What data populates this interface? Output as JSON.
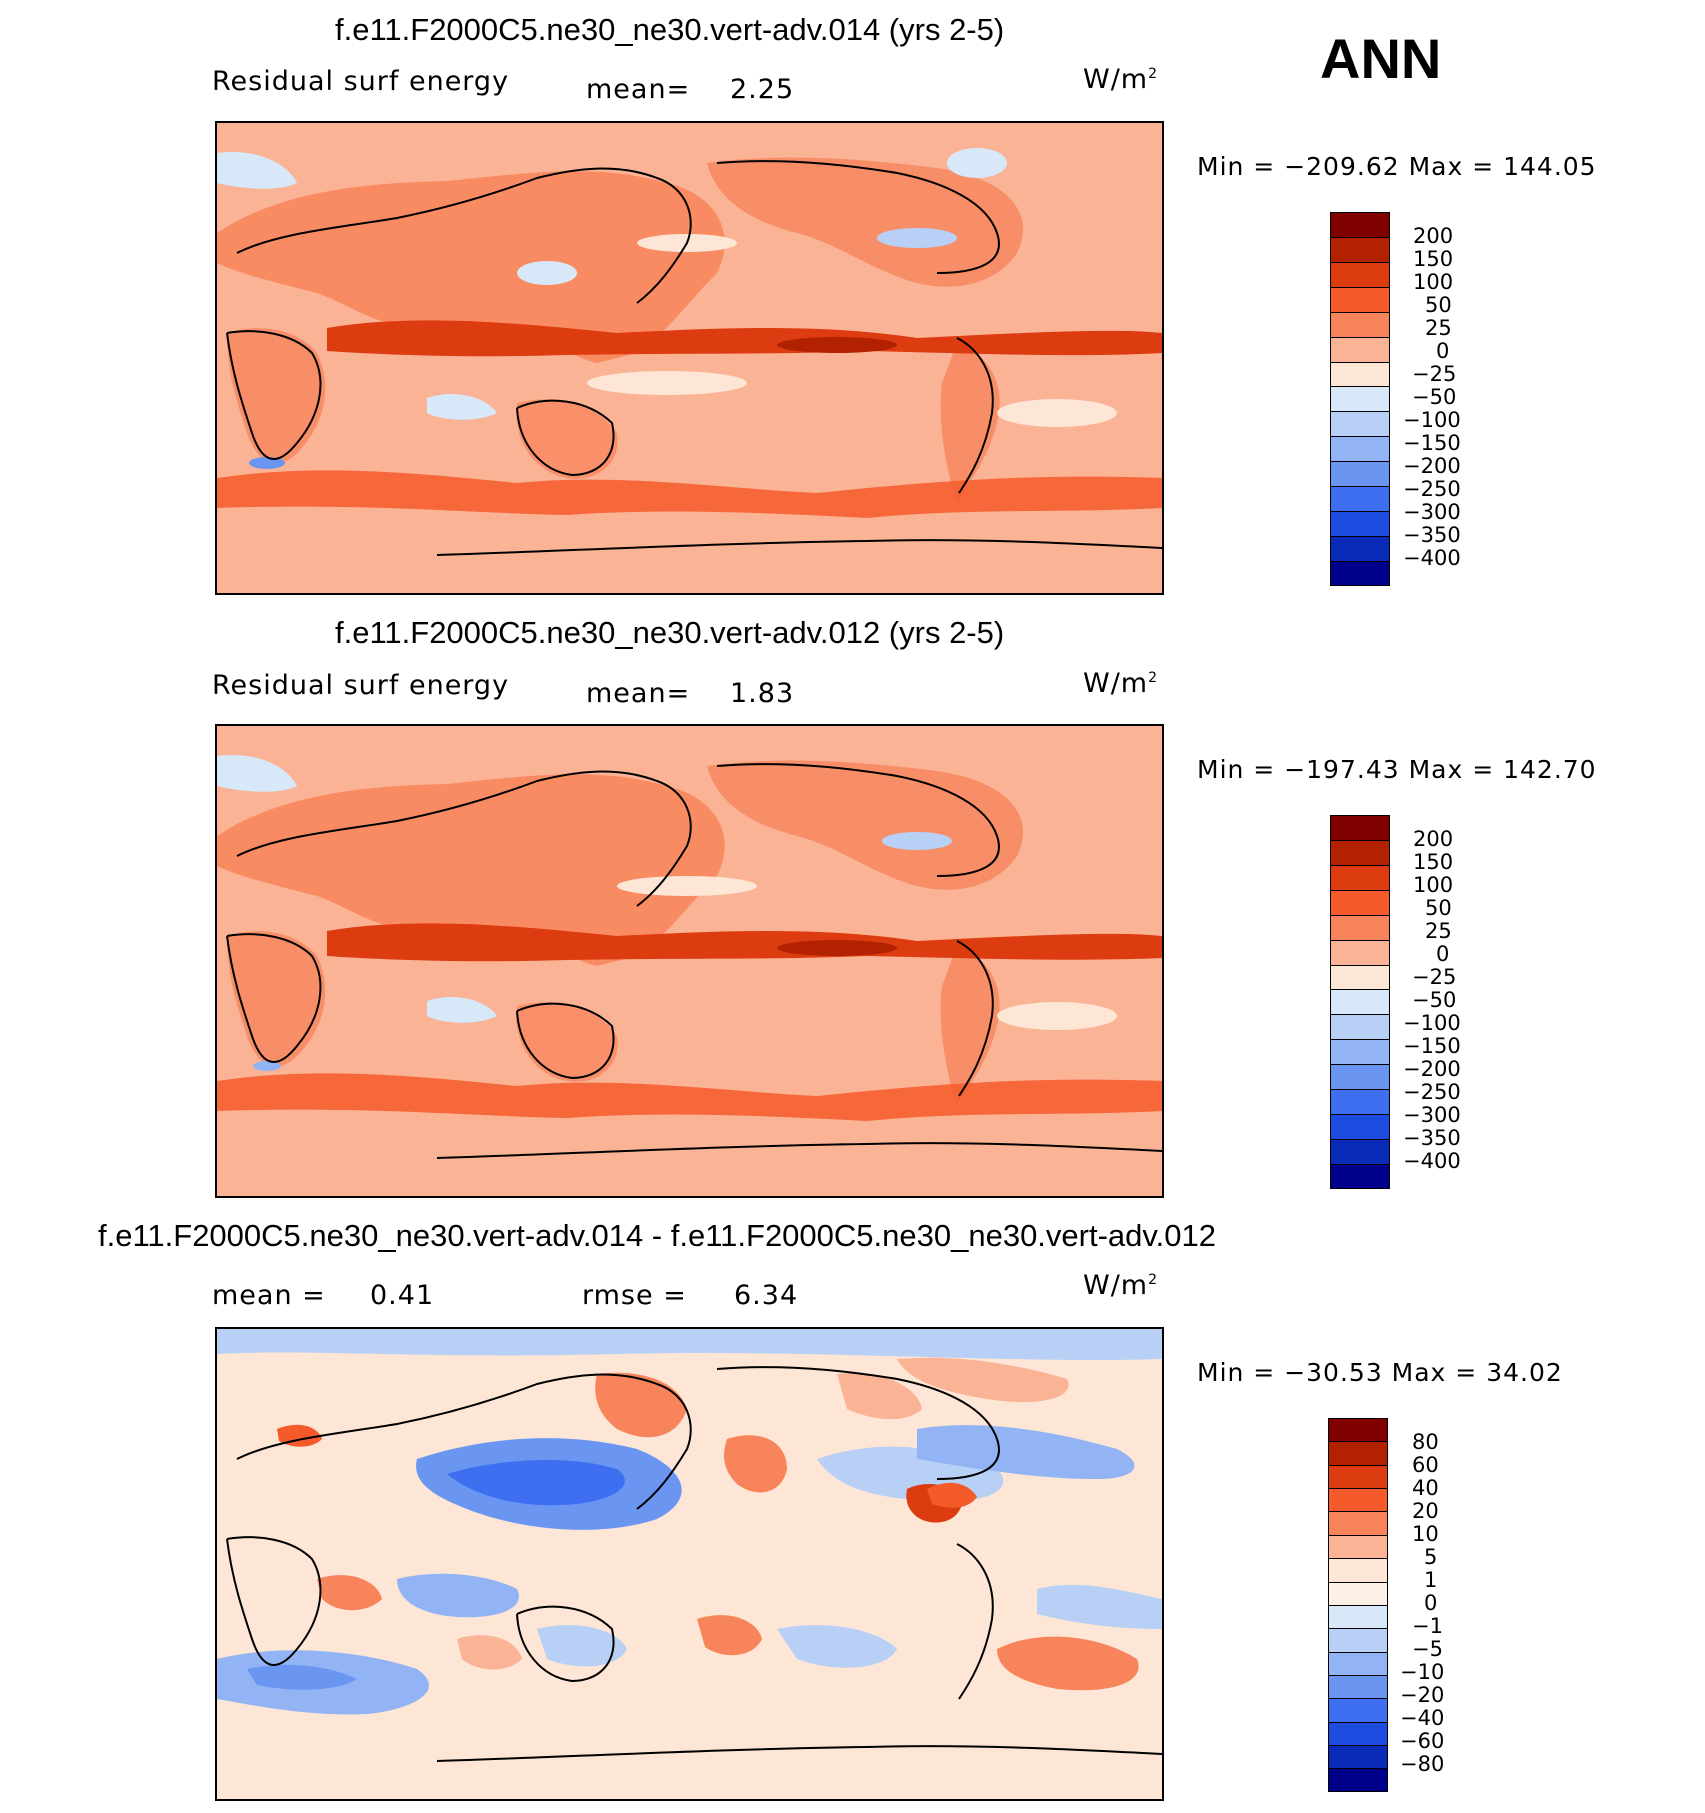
{
  "season": "ANN",
  "units_label": "W/m",
  "units_exp": "2",
  "panels": [
    {
      "title": "f.e11.F2000C5.ne30_ne30.vert-adv.014 (yrs 2-5)",
      "left_label": "Residual surf energy",
      "stat1_label": "mean=",
      "stat1_value": "2.25",
      "minmax": "Min = −209.62 Max = 144.05",
      "levels": [
        "200",
        "150",
        "100",
        "50",
        "25",
        "0",
        "−25",
        "−50",
        "−100",
        "−150",
        "−200",
        "−250",
        "−300",
        "−350",
        "−400"
      ],
      "colors": [
        "#800000",
        "#b22200",
        "#dd3b10",
        "#f45a2a",
        "#f8845b",
        "#fbb396",
        "#fde6d5",
        "#d7e8f8",
        "#b8d0f5",
        "#92b4f4",
        "#6a96f2",
        "#3d6ff0",
        "#1c4de0",
        "#0a2ab8",
        "#00008a"
      ]
    },
    {
      "title": "f.e11.F2000C5.ne30_ne30.vert-adv.012 (yrs 2-5)",
      "left_label": "Residual surf energy",
      "stat1_label": "mean=",
      "stat1_value": "1.83",
      "minmax": "Min = −197.43 Max = 142.70",
      "levels": [
        "200",
        "150",
        "100",
        "50",
        "25",
        "0",
        "−25",
        "−50",
        "−100",
        "−150",
        "−200",
        "−250",
        "−300",
        "−350",
        "−400"
      ],
      "colors": [
        "#800000",
        "#b22200",
        "#dd3b10",
        "#f45a2a",
        "#f8845b",
        "#fbb396",
        "#fde6d5",
        "#d7e8f8",
        "#b8d0f5",
        "#92b4f4",
        "#6a96f2",
        "#3d6ff0",
        "#1c4de0",
        "#0a2ab8",
        "#00008a"
      ]
    },
    {
      "title": "f.e11.F2000C5.ne30_ne30.vert-adv.014 - f.e11.F2000C5.ne30_ne30.vert-adv.012",
      "stat1_label": "mean =",
      "stat1_value": "0.41",
      "stat2_label": "rmse =",
      "stat2_value": "6.34",
      "minmax": "Min = −30.53 Max = 34.02",
      "levels": [
        "80",
        "60",
        "40",
        "20",
        "10",
        "5",
        "1",
        "0",
        "−1",
        "−5",
        "−10",
        "−20",
        "−40",
        "−60",
        "−80"
      ],
      "colors": [
        "#800000",
        "#b22200",
        "#dd3b10",
        "#f45a2a",
        "#f8845b",
        "#fbb396",
        "#fde6d5",
        "#fdf0e6",
        "#d7e8f8",
        "#b8d0f5",
        "#92b4f4",
        "#6a96f2",
        "#3d6ff0",
        "#1c4de0",
        "#0a2ab8",
        "#00008a"
      ]
    }
  ]
}
